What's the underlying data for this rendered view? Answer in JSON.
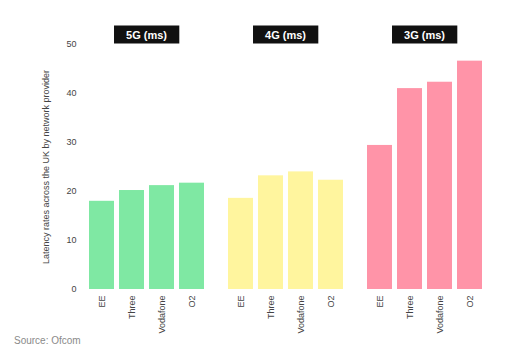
{
  "chart_data": {
    "type": "bar",
    "ylabel": "Latency rates across the UK by network provider",
    "source": "Source: Ofcom",
    "categories": [
      "EE",
      "Three",
      "Vodafone",
      "O2"
    ],
    "series": [
      {
        "name": "5G (ms)",
        "color": "#7fe8a3",
        "values": [
          18,
          20.2,
          21.2,
          21.7
        ]
      },
      {
        "name": "4G (ms)",
        "color": "#fff59e",
        "values": [
          18.6,
          23.2,
          24,
          22.3
        ]
      },
      {
        "name": "3G (ms)",
        "color": "#ff94a8",
        "values": [
          29.4,
          41,
          42.3,
          46.6
        ]
      }
    ],
    "ylim": [
      0,
      50
    ],
    "yticks": [
      0,
      10,
      20,
      30,
      40,
      50
    ],
    "grid": false
  }
}
